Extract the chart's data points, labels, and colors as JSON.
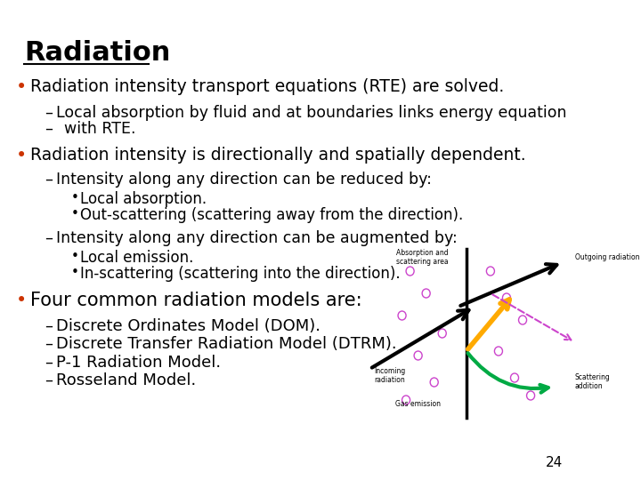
{
  "title": "Radiation",
  "background_color": "#ffffff",
  "title_color": "#000000",
  "title_fontsize": 22,
  "title_underline": true,
  "bullet_color": "#cc3300",
  "text_color": "#000000",
  "page_number": "24",
  "content": [
    {
      "level": 1,
      "text": "Radiation intensity transport equations (RTE) are solved.",
      "fontsize": 13.5
    },
    {
      "level": 2,
      "text": "Local absorption by fluid and at boundaries links energy equation\n        with RTE.",
      "fontsize": 12.5
    },
    {
      "level": 1,
      "text": "Radiation intensity is directionally and spatially dependent.",
      "fontsize": 13.5
    },
    {
      "level": 2,
      "text": "Intensity along any direction can be reduced by:",
      "fontsize": 12.5
    },
    {
      "level": 3,
      "text": "Local absorption.",
      "fontsize": 12
    },
    {
      "level": 3,
      "text": "Out-scattering (scattering away from the direction).",
      "fontsize": 12
    },
    {
      "level": 2,
      "text": "Intensity along any direction can be augmented by:",
      "fontsize": 12.5
    },
    {
      "level": 3,
      "text": "Local emission.",
      "fontsize": 12
    },
    {
      "level": 3,
      "text": "In-scattering (scattering into the direction).",
      "fontsize": 12
    },
    {
      "level": 1,
      "text": "Four common radiation models are:",
      "fontsize": 15
    },
    {
      "level": 2,
      "text": "Discrete Ordinates Model (DOM).",
      "fontsize": 13
    },
    {
      "level": 2,
      "text": "Discrete Transfer Radiation Model (DTRM).",
      "fontsize": 13
    },
    {
      "level": 2,
      "text": "P-1 Radiation Model.",
      "fontsize": 13
    },
    {
      "level": 2,
      "text": "Rosseland Model.",
      "fontsize": 13
    }
  ]
}
